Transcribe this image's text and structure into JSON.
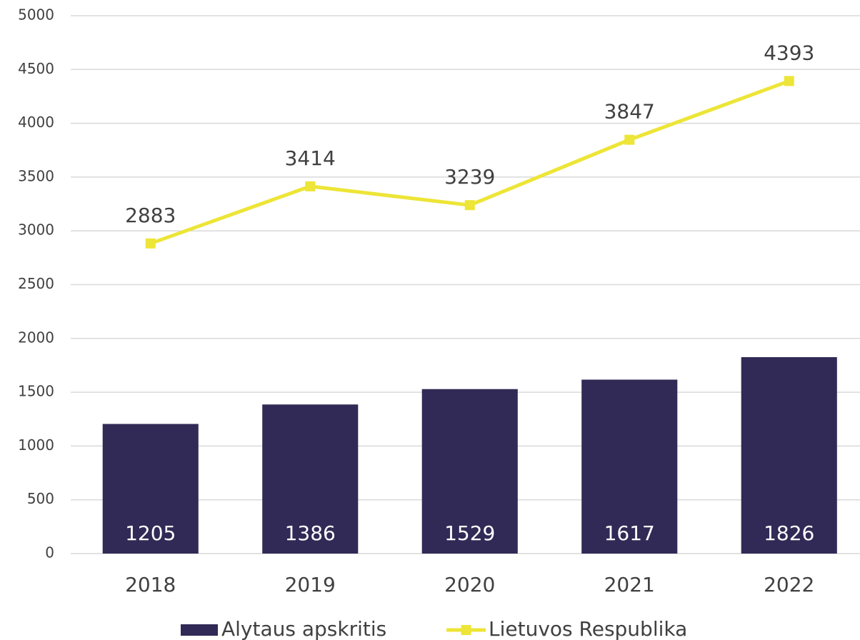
{
  "chart_data": {
    "type": "combo",
    "categories": [
      "2018",
      "2019",
      "2020",
      "2021",
      "2022"
    ],
    "series": [
      {
        "name": "Alytaus apskritis",
        "type": "bar",
        "color": "#312a56",
        "values": [
          1205,
          1386,
          1529,
          1617,
          1826
        ]
      },
      {
        "name": "Lietuvos Respublika",
        "type": "line",
        "color": "#ede537",
        "values": [
          2883,
          3414,
          3239,
          3847,
          4393
        ]
      }
    ],
    "ylim": [
      0,
      5000
    ],
    "yticks": [
      0,
      500,
      1000,
      1500,
      2000,
      2500,
      3000,
      3500,
      4000,
      4500,
      5000
    ],
    "grid": true,
    "legend": "bottom"
  }
}
